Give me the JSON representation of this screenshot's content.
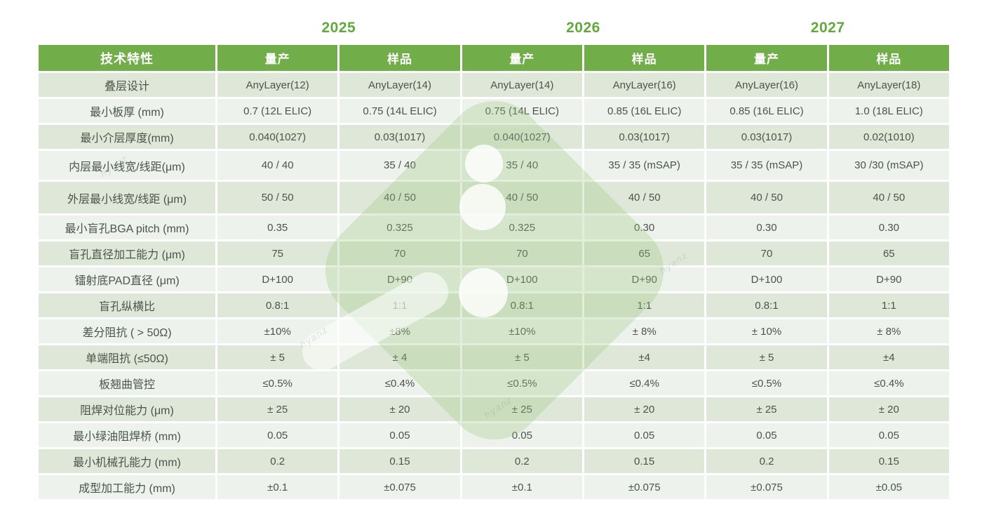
{
  "years": [
    "2025",
    "2026",
    "2027"
  ],
  "table": {
    "header": [
      "技术特性",
      "量产",
      "样品",
      "量产",
      "样品",
      "量产",
      "样品"
    ],
    "rows": [
      {
        "label": "叠层设计",
        "values": [
          "AnyLayer(12)",
          "AnyLayer(14)",
          "AnyLayer(14)",
          "AnyLayer(16)",
          "AnyLayer(16)",
          "AnyLayer(18)"
        ]
      },
      {
        "label": "最小板厚 (mm)",
        "values": [
          "0.7 (12L ELIC)",
          "0.75 (14L ELIC)",
          "0.75 (14L ELIC)",
          "0.85 (16L ELIC)",
          "0.85 (16L ELIC)",
          "1.0 (18L ELIC)"
        ]
      },
      {
        "label": "最小介层厚度(mm)",
        "values": [
          "0.040(1027)",
          "0.03(1017)",
          "0.040(1027)",
          "0.03(1017)",
          "0.03(1017)",
          "0.02(1010)"
        ]
      },
      {
        "label": "内层最小线宽/线距(μm)",
        "values": [
          "40 / 40",
          "35 / 40",
          "35 / 40",
          "35 / 35 (mSAP)",
          "35 / 35 (mSAP)",
          "30 /30 (mSAP)"
        ]
      },
      {
        "label": "外层最小线宽/线距 (μm)",
        "values": [
          "50 / 50",
          "40 / 50",
          "40 / 50",
          "40 / 50",
          "40 / 50",
          "40 / 50"
        ]
      },
      {
        "label": "最小盲孔BGA pitch (mm)",
        "values": [
          "0.35",
          "0.325",
          "0.325",
          "0.30",
          "0.30",
          "0.30"
        ]
      },
      {
        "label": "盲孔直径加工能力 (μm)",
        "values": [
          "75",
          "70",
          "70",
          "65",
          "70",
          "65"
        ]
      },
      {
        "label": "镭射底PAD直径 (μm)",
        "values": [
          "D+100",
          "D+90",
          "D+100",
          "D+90",
          "D+100",
          "D+90"
        ]
      },
      {
        "label": "盲孔纵横比",
        "values": [
          "0.8:1",
          "1:1",
          "0.8:1",
          "1:1",
          "0.8:1",
          "1:1"
        ]
      },
      {
        "label": "差分阻抗 ( > 50Ω)",
        "values": [
          "±10%",
          "±8%",
          "±10%",
          "± 8%",
          "± 10%",
          "± 8%"
        ]
      },
      {
        "label": "单端阻抗 (≤50Ω)",
        "values": [
          "± 5",
          "± 4",
          "± 5",
          "±4",
          "± 5",
          "±4"
        ]
      },
      {
        "label": "板翘曲管控",
        "values": [
          "≤0.5%",
          "≤0.4%",
          "≤0.5%",
          "≤0.4%",
          "≤0.5%",
          "≤0.4%"
        ]
      },
      {
        "label": "阻焊对位能力 (μm)",
        "values": [
          "± 25",
          "± 20",
          "± 25",
          "± 20",
          "± 25",
          "± 20"
        ]
      },
      {
        "label": "最小绿油阻焊桥 (mm)",
        "values": [
          "0.05",
          "0.05",
          "0.05",
          "0.05",
          "0.05",
          "0.05"
        ]
      },
      {
        "label": "最小机械孔能力 (mm)",
        "values": [
          "0.2",
          "0.15",
          "0.2",
          "0.15",
          "0.2",
          "0.15"
        ]
      },
      {
        "label": "成型加工能力 (mm)",
        "values": [
          "±0.1",
          "±0.075",
          "±0.1",
          "±0.075",
          "±0.075",
          "±0.05"
        ]
      }
    ]
  },
  "watermark": {
    "text": "hyanz"
  },
  "colors": {
    "header_green": "#71ae4a",
    "year_green": "#61a83d",
    "row_odd": "#dfe8d8",
    "row_even": "#eef2ec",
    "cell_text": "#4b534c",
    "watermark_green": "#9ac780"
  }
}
